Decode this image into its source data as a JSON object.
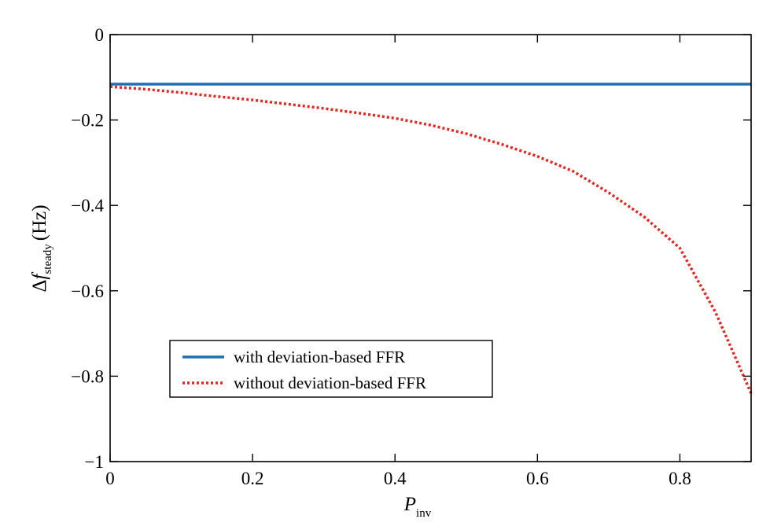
{
  "chart_data": {
    "type": "line",
    "title": "",
    "xlabel": {
      "main": "P",
      "sub": "inv"
    },
    "ylabel": {
      "delta": "Δ",
      "main": "f",
      "sub": "steady",
      "unit": "(Hz)"
    },
    "xlim": [
      0,
      0.9
    ],
    "ylim": [
      -1,
      0
    ],
    "x_ticks": [
      0,
      0.2,
      0.4,
      0.6,
      0.8
    ],
    "x_tick_labels": [
      "0",
      "0.2",
      "0.4",
      "0.6",
      "0.8"
    ],
    "y_ticks": [
      0,
      -0.2,
      -0.4,
      -0.6,
      -0.8,
      -1
    ],
    "y_tick_labels": [
      "0",
      "−0.2",
      "−0.4",
      "−0.6",
      "−0.8",
      "−1"
    ],
    "grid": false,
    "legend_position": "lower-left",
    "series": [
      {
        "name": "with deviation-based FFR",
        "color": "#1f6eb4",
        "style": "solid",
        "x": [
          0.0,
          0.9
        ],
        "y": [
          -0.116,
          -0.116
        ]
      },
      {
        "name": "without deviation-based FFR",
        "color": "#e8261f",
        "style": "dotted",
        "x": [
          0.0,
          0.05,
          0.1,
          0.15,
          0.2,
          0.25,
          0.3,
          0.35,
          0.4,
          0.45,
          0.5,
          0.55,
          0.6,
          0.65,
          0.7,
          0.75,
          0.8,
          0.85,
          0.9
        ],
        "y": [
          -0.122,
          -0.128,
          -0.136,
          -0.145,
          -0.153,
          -0.163,
          -0.173,
          -0.184,
          -0.196,
          -0.212,
          -0.232,
          -0.257,
          -0.285,
          -0.32,
          -0.37,
          -0.427,
          -0.5,
          -0.65,
          -0.84
        ]
      }
    ]
  }
}
